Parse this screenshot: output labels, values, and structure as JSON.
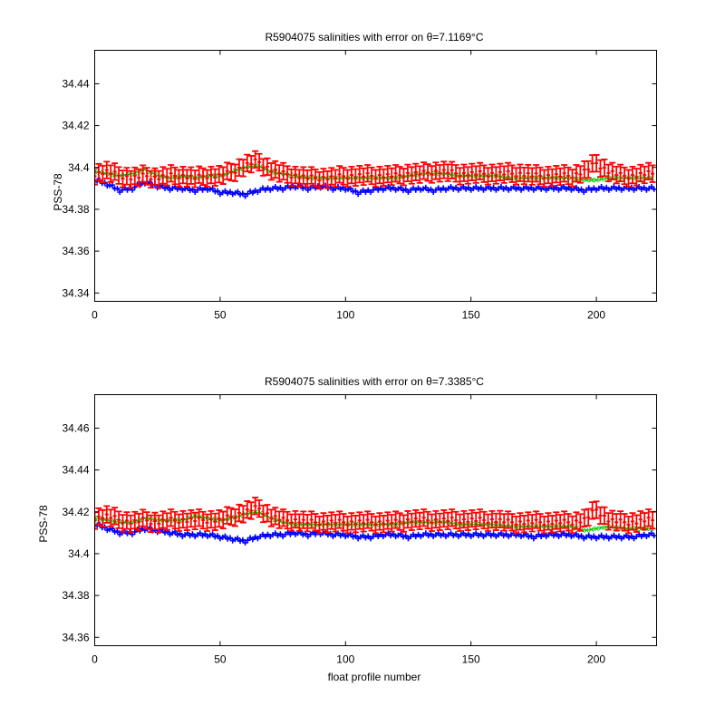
{
  "colors": {
    "background": "#ffffff",
    "errorbar": "#ff0000",
    "mapped": "#00cc00",
    "float": "#0000ff",
    "axis": "#000000"
  },
  "chart_data": [
    {
      "type": "line",
      "title": "R5904075 salinities with error on θ=7.1169°C",
      "xlabel": "",
      "ylabel": "PSS-78",
      "xlim": [
        0,
        224
      ],
      "ylim": [
        34.336,
        34.456
      ],
      "xticks": [
        0,
        50,
        100,
        150,
        200
      ],
      "yticks": [
        34.34,
        34.36,
        34.38,
        34.4,
        34.42,
        34.44
      ],
      "ytick_labels": [
        "34.34",
        "34.36",
        "34.38",
        "34.4",
        "34.42",
        "34.44"
      ],
      "grid": false,
      "series": [
        {
          "role": "float",
          "marker": "+",
          "x": [
            0,
            5,
            10,
            15,
            20,
            25,
            30,
            35,
            40,
            45,
            50,
            55,
            60,
            65,
            70,
            75,
            80,
            85,
            90,
            95,
            100,
            105,
            110,
            115,
            120,
            125,
            130,
            135,
            140,
            145,
            150,
            155,
            160,
            165,
            170,
            175,
            180,
            185,
            190,
            195,
            200,
            205,
            210,
            215,
            220,
            223
          ],
          "values": [
            34.394,
            34.392,
            34.389,
            34.39,
            34.393,
            34.391,
            34.39,
            34.39,
            34.389,
            34.39,
            34.388,
            34.388,
            34.387,
            34.389,
            34.39,
            34.39,
            34.391,
            34.39,
            34.391,
            34.39,
            34.39,
            34.388,
            34.389,
            34.39,
            34.39,
            34.389,
            34.39,
            34.389,
            34.39,
            34.39,
            34.39,
            34.39,
            34.39,
            34.39,
            34.39,
            34.39,
            34.39,
            34.39,
            34.39,
            34.389,
            34.39,
            34.39,
            34.39,
            34.39,
            34.39,
            34.39
          ]
        },
        {
          "role": "mapped",
          "marker": "x",
          "x": [
            0,
            5,
            10,
            15,
            20,
            25,
            30,
            35,
            40,
            45,
            50,
            55,
            60,
            65,
            70,
            75,
            80,
            85,
            90,
            95,
            100,
            105,
            110,
            115,
            120,
            125,
            130,
            135,
            140,
            145,
            150,
            155,
            160,
            165,
            170,
            175,
            180,
            185,
            190,
            195,
            200,
            205,
            210,
            215,
            220,
            223
          ],
          "values": [
            34.398,
            34.397,
            34.396,
            34.397,
            34.399,
            34.396,
            34.395,
            34.396,
            34.395,
            34.396,
            34.396,
            34.398,
            34.4,
            34.401,
            34.398,
            34.397,
            34.396,
            34.395,
            34.395,
            34.395,
            34.395,
            34.395,
            34.395,
            34.395,
            34.395,
            34.396,
            34.397,
            34.397,
            34.397,
            34.396,
            34.396,
            34.396,
            34.396,
            34.395,
            34.395,
            34.395,
            34.395,
            34.395,
            34.395,
            34.394,
            34.394,
            34.395,
            34.395,
            34.395,
            34.395,
            34.395
          ]
        },
        {
          "role": "errorbar",
          "marker": "errorbar",
          "x": [
            0,
            5,
            10,
            15,
            20,
            25,
            30,
            35,
            40,
            45,
            50,
            55,
            60,
            65,
            70,
            75,
            80,
            85,
            90,
            95,
            100,
            105,
            110,
            115,
            120,
            125,
            130,
            135,
            140,
            145,
            150,
            155,
            160,
            165,
            170,
            175,
            180,
            185,
            190,
            195,
            200,
            205,
            210,
            215,
            220,
            223
          ],
          "values": [
            34.397,
            34.398,
            34.396,
            34.395,
            34.396,
            34.395,
            34.396,
            34.396,
            34.395,
            34.396,
            34.396,
            34.398,
            34.401,
            34.403,
            34.399,
            34.397,
            34.396,
            34.395,
            34.395,
            34.395,
            34.396,
            34.396,
            34.396,
            34.396,
            34.396,
            34.397,
            34.397,
            34.398,
            34.398,
            34.397,
            34.397,
            34.397,
            34.397,
            34.397,
            34.397,
            34.396,
            34.396,
            34.396,
            34.396,
            34.398,
            34.402,
            34.398,
            34.396,
            34.396,
            34.397,
            34.397
          ],
          "error": 0.004
        }
      ]
    },
    {
      "type": "line",
      "title": "R5904075 salinities with error on θ=7.3385°C",
      "xlabel": "float profile number",
      "ylabel": "PSS-78",
      "xlim": [
        0,
        224
      ],
      "ylim": [
        34.356,
        34.476
      ],
      "xticks": [
        0,
        50,
        100,
        150,
        200
      ],
      "yticks": [
        34.36,
        34.38,
        34.4,
        34.42,
        34.44,
        34.46
      ],
      "ytick_labels": [
        "34.36",
        "34.38",
        "34.4",
        "34.42",
        "34.44",
        "34.46"
      ],
      "grid": false,
      "series": [
        {
          "role": "float",
          "marker": "+",
          "x": [
            0,
            5,
            10,
            15,
            20,
            25,
            30,
            35,
            40,
            45,
            50,
            55,
            60,
            65,
            70,
            75,
            80,
            85,
            90,
            95,
            100,
            105,
            110,
            115,
            120,
            125,
            130,
            135,
            140,
            145,
            150,
            155,
            160,
            165,
            170,
            175,
            180,
            185,
            190,
            195,
            200,
            205,
            210,
            215,
            220,
            223
          ],
          "values": [
            34.414,
            34.412,
            34.41,
            34.41,
            34.412,
            34.411,
            34.41,
            34.409,
            34.409,
            34.409,
            34.408,
            34.407,
            34.406,
            34.408,
            34.409,
            34.409,
            34.41,
            34.409,
            34.41,
            34.409,
            34.409,
            34.408,
            34.408,
            34.409,
            34.409,
            34.408,
            34.409,
            34.409,
            34.409,
            34.409,
            34.409,
            34.409,
            34.409,
            34.409,
            34.409,
            34.408,
            34.409,
            34.409,
            34.409,
            34.408,
            34.408,
            34.408,
            34.408,
            34.408,
            34.409,
            34.409
          ]
        },
        {
          "role": "mapped",
          "marker": "x",
          "x": [
            0,
            5,
            10,
            15,
            20,
            25,
            30,
            35,
            40,
            45,
            50,
            55,
            60,
            65,
            70,
            75,
            80,
            85,
            90,
            95,
            100,
            105,
            110,
            115,
            120,
            125,
            130,
            135,
            140,
            145,
            150,
            155,
            160,
            165,
            170,
            175,
            180,
            185,
            190,
            195,
            200,
            205,
            210,
            215,
            220,
            223
          ],
          "values": [
            34.417,
            34.416,
            34.415,
            34.415,
            34.417,
            34.416,
            34.416,
            34.416,
            34.418,
            34.417,
            34.416,
            34.417,
            34.419,
            34.42,
            34.417,
            34.415,
            34.414,
            34.414,
            34.414,
            34.414,
            34.414,
            34.414,
            34.414,
            34.414,
            34.414,
            34.415,
            34.415,
            34.415,
            34.415,
            34.414,
            34.414,
            34.414,
            34.414,
            34.413,
            34.413,
            34.413,
            34.413,
            34.413,
            34.413,
            34.411,
            34.412,
            34.413,
            34.412,
            34.412,
            34.412,
            34.412
          ]
        },
        {
          "role": "errorbar",
          "marker": "errorbar",
          "x": [
            0,
            5,
            10,
            15,
            20,
            25,
            30,
            35,
            40,
            45,
            50,
            55,
            60,
            65,
            70,
            75,
            80,
            85,
            90,
            95,
            100,
            105,
            110,
            115,
            120,
            125,
            130,
            135,
            140,
            145,
            150,
            155,
            160,
            165,
            170,
            175,
            180,
            185,
            190,
            195,
            200,
            205,
            210,
            215,
            220,
            223
          ],
          "values": [
            34.417,
            34.418,
            34.416,
            34.415,
            34.416,
            34.415,
            34.416,
            34.416,
            34.416,
            34.416,
            34.416,
            34.418,
            34.42,
            34.422,
            34.418,
            34.416,
            34.416,
            34.415,
            34.415,
            34.415,
            34.415,
            34.415,
            34.415,
            34.415,
            34.415,
            34.416,
            34.416,
            34.416,
            34.416,
            34.416,
            34.416,
            34.416,
            34.416,
            34.415,
            34.415,
            34.415,
            34.415,
            34.415,
            34.415,
            34.416,
            34.421,
            34.416,
            34.415,
            34.415,
            34.416,
            34.416
          ],
          "error": 0.004
        }
      ]
    }
  ]
}
